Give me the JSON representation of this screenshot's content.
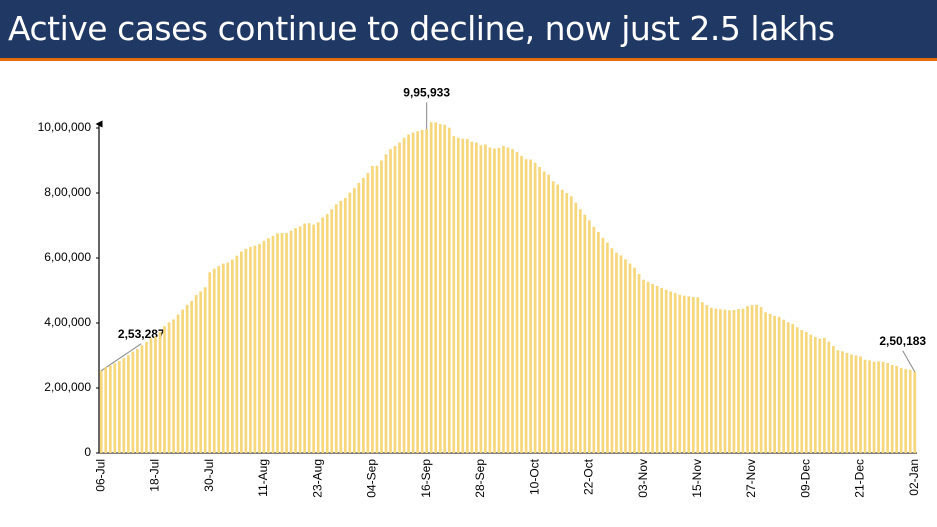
{
  "title": "Active cases continue to decline, now just 2.5 lakhs",
  "chart_data": {
    "type": "bar",
    "color": "#f6d77c",
    "ylim": [
      0,
      1050000
    ],
    "yticks": [
      0,
      {
        "value": 200000,
        "label": "2,00,000"
      },
      {
        "value": 400000,
        "label": "4,00,000"
      },
      {
        "value": 600000,
        "label": "6,00,000"
      },
      {
        "value": 800000,
        "label": "8,00,000"
      },
      {
        "value": 1000000,
        "label": "10,00,000"
      }
    ],
    "categories": [
      "06-Jul",
      null,
      null,
      null,
      null,
      null,
      null,
      null,
      null,
      null,
      null,
      null,
      "18-Jul",
      null,
      null,
      null,
      null,
      null,
      null,
      null,
      null,
      null,
      null,
      null,
      "30-Jul",
      null,
      null,
      null,
      null,
      null,
      null,
      null,
      null,
      null,
      null,
      null,
      "11-Aug",
      null,
      null,
      null,
      null,
      null,
      null,
      null,
      null,
      null,
      null,
      null,
      "23-Aug",
      null,
      null,
      null,
      null,
      null,
      null,
      null,
      null,
      null,
      null,
      null,
      "04-Sep",
      null,
      null,
      null,
      null,
      null,
      null,
      null,
      null,
      null,
      null,
      null,
      "16-Sep",
      null,
      null,
      null,
      null,
      null,
      null,
      null,
      null,
      null,
      null,
      null,
      "28-Sep",
      null,
      null,
      null,
      null,
      null,
      null,
      null,
      null,
      null,
      null,
      null,
      "10-Oct",
      null,
      null,
      null,
      null,
      null,
      null,
      null,
      null,
      null,
      null,
      null,
      "22-Oct",
      null,
      null,
      null,
      null,
      null,
      null,
      null,
      null,
      null,
      null,
      null,
      "03-Nov",
      null,
      null,
      null,
      null,
      null,
      null,
      null,
      null,
      null,
      null,
      null,
      "15-Nov",
      null,
      null,
      null,
      null,
      null,
      null,
      null,
      null,
      null,
      null,
      null,
      "27-Nov",
      null,
      null,
      null,
      null,
      null,
      null,
      null,
      null,
      null,
      null,
      null,
      "09-Dec",
      null,
      null,
      null,
      null,
      null,
      null,
      null,
      null,
      null,
      null,
      null,
      "21-Dec",
      null,
      null,
      null,
      null,
      null,
      null,
      null,
      null,
      null,
      null,
      null,
      "02-Jan"
    ],
    "values": [
      253287,
      264000,
      269000,
      276000,
      283000,
      292000,
      301000,
      312000,
      320000,
      331000,
      342000,
      353000,
      358000,
      373000,
      390000,
      402000,
      411000,
      426000,
      441000,
      456000,
      468000,
      486000,
      497000,
      510000,
      556000,
      567000,
      575000,
      583000,
      586000,
      595000,
      607000,
      620000,
      628000,
      634000,
      638000,
      643000,
      653000,
      661000,
      668000,
      676000,
      677000,
      677000,
      684000,
      692000,
      697000,
      706000,
      707000,
      703000,
      710000,
      725000,
      735000,
      750000,
      765000,
      776000,
      785000,
      801000,
      815000,
      831000,
      846000,
      862000,
      883000,
      884000,
      900000,
      919000,
      935000,
      945000,
      955000,
      970000,
      980000,
      986000,
      990000,
      994000,
      995933,
      1017754,
      1017000,
      1012000,
      1010000,
      1001000,
      975000,
      970000,
      967000,
      966000,
      958000,
      955000,
      947000,
      949000,
      940000,
      937000,
      939000,
      945000,
      940000,
      935000,
      926000,
      914000,
      904000,
      903000,
      893000,
      880000,
      866000,
      856000,
      836000,
      826000,
      810000,
      800000,
      790000,
      770000,
      750000,
      733000,
      716000,
      696000,
      680000,
      662000,
      647000,
      630000,
      616000,
      608000,
      596000,
      583000,
      570000,
      551000,
      533000,
      527000,
      520000,
      514000,
      508000,
      502000,
      497000,
      492000,
      487000,
      484000,
      482000,
      480000,
      479000,
      464000,
      455000,
      447000,
      444000,
      442000,
      441000,
      439000,
      440000,
      443000,
      444000,
      452000,
      455000,
      456000,
      449000,
      433000,
      428000,
      422000,
      419000,
      410000,
      402000,
      397000,
      387000,
      378000,
      372000,
      364000,
      357000,
      352000,
      354000,
      343000,
      329000,
      316000,
      313000,
      308000,
      303000,
      300000,
      297000,
      287000,
      285000,
      281000,
      282000,
      280000,
      277000,
      271000,
      268000,
      262000,
      258000,
      256000,
      250183
    ],
    "value_labels": [
      "2,53,287",
      null,
      null,
      null,
      null,
      null,
      null,
      null,
      null,
      null,
      null,
      null,
      null,
      null,
      null,
      null,
      null,
      null,
      null,
      null,
      null,
      null,
      null,
      null,
      null,
      null,
      null,
      null,
      null,
      null,
      null,
      null,
      null,
      null,
      null,
      null,
      null,
      null,
      null,
      null,
      null,
      null,
      null,
      null,
      null,
      null,
      null,
      null,
      null,
      null,
      null,
      null,
      null,
      null,
      null,
      null,
      null,
      null,
      null,
      null,
      null,
      null,
      null,
      null,
      null,
      null,
      null,
      null,
      null,
      null,
      null,
      null,
      "9,95,933",
      null,
      null,
      null,
      null,
      null,
      null,
      null,
      null,
      null,
      null,
      null,
      null,
      null,
      null,
      null,
      null,
      null,
      null,
      null,
      null,
      null,
      null,
      null,
      null,
      null,
      null,
      null,
      null,
      null,
      null,
      null,
      null,
      null,
      null,
      null,
      null,
      null,
      null,
      null,
      null,
      null,
      null,
      null,
      null,
      null,
      null,
      null,
      null,
      null,
      null,
      null,
      null,
      null,
      null,
      null,
      null,
      null,
      null,
      null,
      null,
      null,
      null,
      null,
      null,
      null,
      null,
      null,
      null,
      null,
      null,
      null,
      null,
      null,
      null,
      null,
      null,
      null,
      null,
      null,
      null,
      null,
      null,
      null,
      null,
      null,
      null,
      null,
      null,
      null,
      null,
      null,
      null,
      null,
      null,
      null,
      null,
      null,
      null,
      null,
      null,
      null,
      null,
      null,
      null,
      null,
      null,
      null,
      "2,50,183"
    ]
  }
}
